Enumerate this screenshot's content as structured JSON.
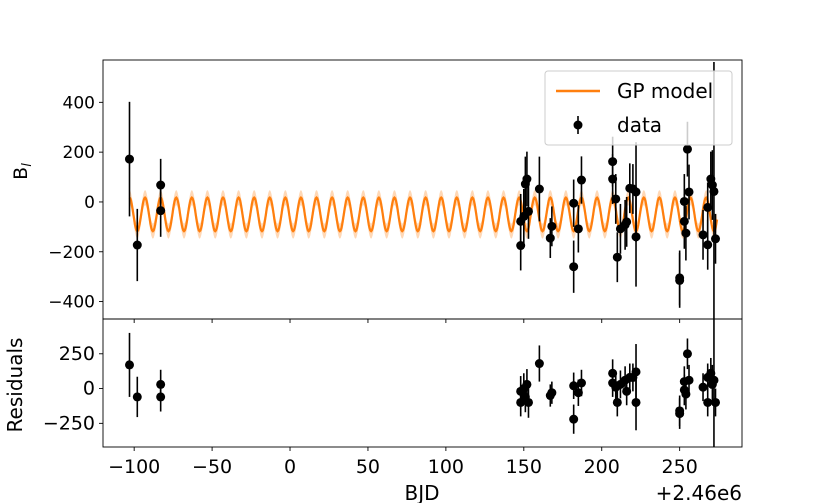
{
  "chart_data": [
    {
      "type": "line",
      "panel": "top",
      "ylabel": "B$_l$",
      "ylabel_text": "B",
      "ylabel_sub": "l",
      "ylim": [
        -470,
        570
      ],
      "y_ticks": [
        -400,
        -200,
        0,
        200,
        400
      ],
      "y_tick_labels": [
        "−400",
        "−200",
        "0",
        "200",
        "400"
      ],
      "grid": false,
      "legend": {
        "placement": "top-right",
        "entries": [
          {
            "label": "GP model",
            "kind": "line",
            "color": "#ff7f0e"
          },
          {
            "label": "data",
            "kind": "errorbar",
            "color": "#000000"
          }
        ]
      },
      "series": [
        {
          "name": "GP model",
          "kind": "model",
          "color": "#ff7f0e",
          "band_color": "#ff7f0e",
          "model": {
            "x_start": -103,
            "x_end": 274,
            "mean": -50,
            "amplitude": 75,
            "period": 10,
            "band": 30
          }
        },
        {
          "name": "data",
          "kind": "errorbar",
          "color": "#000000",
          "points": [
            [
              -103,
              172,
              230
            ],
            [
              -98,
              -173,
              145
            ],
            [
              -83,
              68,
              105
            ],
            [
              -83,
              -35,
              105
            ],
            [
              148,
              -78,
              110
            ],
            [
              148,
              -175,
              100
            ],
            [
              150,
              -58,
              110
            ],
            [
              151,
              72,
              110
            ],
            [
              152,
              92,
              110
            ],
            [
              153,
              -38,
              110
            ],
            [
              160,
              52,
              130
            ],
            [
              167,
              -145,
              80
            ],
            [
              168,
              -98,
              80
            ],
            [
              182,
              -5,
              95
            ],
            [
              182,
              -260,
              105
            ],
            [
              185,
              -108,
              95
            ],
            [
              187,
              88,
              95
            ],
            [
              207,
              162,
              100
            ],
            [
              207,
              92,
              100
            ],
            [
              209,
              12,
              100
            ],
            [
              210,
              -222,
              100
            ],
            [
              212,
              -108,
              100
            ],
            [
              215,
              -92,
              100
            ],
            [
              216,
              -80,
              100
            ],
            [
              218,
              55,
              100
            ],
            [
              220,
              52,
              100
            ],
            [
              222,
              40,
              200
            ],
            [
              222,
              -140,
              200
            ],
            [
              250,
              -305,
              110
            ],
            [
              250,
              -315,
              110
            ],
            [
              253,
              -78,
              110
            ],
            [
              253,
              2,
              110
            ],
            [
              254,
              -125,
              110
            ],
            [
              255,
              212,
              110
            ],
            [
              256,
              40,
              110
            ],
            [
              265,
              -132,
              100
            ],
            [
              268,
              -22,
              100
            ],
            [
              268,
              -172,
              100
            ],
            [
              270,
              92,
              110
            ],
            [
              271,
              68,
              140
            ],
            [
              272,
              42,
              520
            ],
            [
              273,
              -148,
              100
            ]
          ]
        }
      ]
    },
    {
      "type": "scatter",
      "panel": "bottom",
      "xlabel": "BJD",
      "ylabel": "Residuals",
      "x_offset_label": "+2.46e6",
      "xlim": [
        -120,
        290
      ],
      "ylim": [
        -420,
        500
      ],
      "x_ticks": [
        -100,
        -50,
        0,
        50,
        100,
        150,
        200,
        250
      ],
      "x_tick_labels": [
        "−100",
        "−50",
        "0",
        "50",
        "100",
        "150",
        "200",
        "250"
      ],
      "y_ticks": [
        -250,
        0,
        250
      ],
      "y_tick_labels": [
        "−250",
        "0",
        "250"
      ],
      "grid": false,
      "series": [
        {
          "name": "Residuals",
          "kind": "errorbar",
          "color": "#000000",
          "points": [
            [
              -103,
              170,
              230
            ],
            [
              -98,
              -60,
              145
            ],
            [
              -83,
              30,
              105
            ],
            [
              -83,
              -60,
              105
            ],
            [
              148,
              -20,
              110
            ],
            [
              148,
              -100,
              100
            ],
            [
              150,
              0,
              110
            ],
            [
              151,
              -60,
              110
            ],
            [
              152,
              30,
              110
            ],
            [
              153,
              -100,
              110
            ],
            [
              160,
              180,
              130
            ],
            [
              167,
              -50,
              80
            ],
            [
              168,
              -30,
              80
            ],
            [
              182,
              20,
              95
            ],
            [
              182,
              -220,
              105
            ],
            [
              185,
              -30,
              95
            ],
            [
              187,
              40,
              95
            ],
            [
              207,
              110,
              100
            ],
            [
              207,
              40,
              100
            ],
            [
              209,
              10,
              100
            ],
            [
              210,
              -100,
              100
            ],
            [
              212,
              30,
              100
            ],
            [
              215,
              60,
              100
            ],
            [
              216,
              -20,
              100
            ],
            [
              218,
              80,
              100
            ],
            [
              220,
              80,
              100
            ],
            [
              222,
              120,
              200
            ],
            [
              222,
              -100,
              200
            ],
            [
              250,
              -160,
              110
            ],
            [
              250,
              -180,
              110
            ],
            [
              253,
              -10,
              110
            ],
            [
              253,
              50,
              110
            ],
            [
              254,
              -40,
              110
            ],
            [
              255,
              250,
              110
            ],
            [
              256,
              60,
              110
            ],
            [
              265,
              10,
              100
            ],
            [
              268,
              80,
              100
            ],
            [
              268,
              -100,
              100
            ],
            [
              270,
              110,
              110
            ],
            [
              271,
              30,
              140
            ],
            [
              272,
              60,
              520
            ],
            [
              273,
              -100,
              100
            ]
          ]
        }
      ]
    }
  ]
}
